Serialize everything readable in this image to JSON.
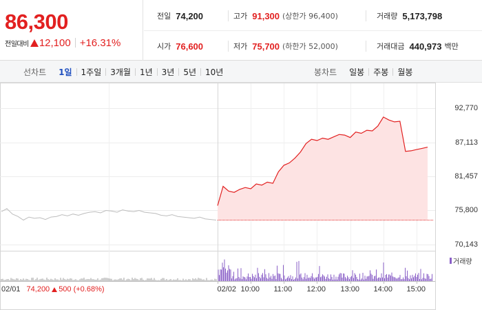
{
  "quote": {
    "price": "86,300",
    "change_label": "전일대비",
    "change_amount": "12,100",
    "change_rate": "+16.31%",
    "prev_close_label": "전일",
    "prev_close": "74,200",
    "open_label": "시가",
    "open": "76,600",
    "high_label": "고가",
    "high": "91,300",
    "upper_limit": "(상한가 96,400)",
    "low_label": "저가",
    "low": "75,700",
    "lower_limit": "(하한가 52,000)",
    "volume_label": "거래량",
    "volume": "5,173,798",
    "value_label": "거래대금",
    "value": "440,973",
    "value_unit": "백만"
  },
  "tabs": {
    "line_label": "선차트",
    "line_items": [
      "1일",
      "1주일",
      "3개월",
      "1년",
      "3년",
      "5년",
      "10년"
    ],
    "line_active": 0,
    "candle_label": "봉차트",
    "candle_items": [
      "일봉",
      "주봉",
      "월봉"
    ]
  },
  "colors": {
    "up": "#e22020",
    "prev_day_line": "#bdbdbd",
    "area_fill": "#fde3e3",
    "volume_bar": "#8a5fc7",
    "active_tab": "#1f4fbf"
  },
  "chart_data": {
    "type": "line",
    "y_ticks": [
      "92,770",
      "87,113",
      "81,457",
      "75,800",
      "70,143"
    ],
    "y_tick_values": [
      92770,
      87113,
      81457,
      75800,
      70143
    ],
    "ylim": [
      70143,
      92770
    ],
    "x_ticks": [
      "02/01",
      "02/02",
      "10:00",
      "11:00",
      "12:00",
      "13:00",
      "14:00",
      "15:00"
    ],
    "grid": true,
    "baseline": 74200,
    "prev_day": {
      "date": "02/01",
      "close": "74,200",
      "change": "500 (+0.68%)",
      "values": [
        75600,
        76100,
        75200,
        74800,
        74200,
        74700,
        74500,
        74600,
        74300,
        74700,
        74800,
        75100,
        74900,
        75200,
        75000,
        75300,
        75500,
        75600,
        75400,
        75800,
        75700,
        75500,
        75900,
        75700,
        75600,
        75800,
        75500,
        75400,
        75300,
        75000,
        74900,
        75100,
        74800,
        74700,
        74600,
        74500,
        74700,
        74400,
        74300,
        74200
      ]
    },
    "today": {
      "date": "02/02",
      "times": [
        "09:00",
        "09:10",
        "09:20",
        "09:30",
        "09:40",
        "09:50",
        "10:00",
        "10:10",
        "10:20",
        "10:30",
        "10:40",
        "10:50",
        "11:00",
        "11:10",
        "11:20",
        "11:30",
        "11:40",
        "11:50",
        "12:00",
        "12:10",
        "12:20",
        "12:30",
        "12:40",
        "12:50",
        "13:00",
        "13:10",
        "13:20",
        "13:30",
        "13:40",
        "13:50",
        "14:00",
        "14:10",
        "14:20",
        "14:30",
        "14:40",
        "14:50",
        "15:00",
        "15:10",
        "15:20"
      ],
      "values": [
        76600,
        79800,
        79000,
        78800,
        79300,
        79600,
        79400,
        80200,
        80000,
        80500,
        80300,
        82200,
        83300,
        83700,
        84500,
        85500,
        86900,
        87600,
        87400,
        87800,
        87600,
        88000,
        88400,
        88300,
        87900,
        88800,
        88600,
        89100,
        89000,
        89800,
        91300,
        90800,
        90500,
        90600,
        85600,
        85700,
        85900,
        86100,
        86300
      ]
    },
    "volume": {
      "label": "거래량"
    }
  }
}
